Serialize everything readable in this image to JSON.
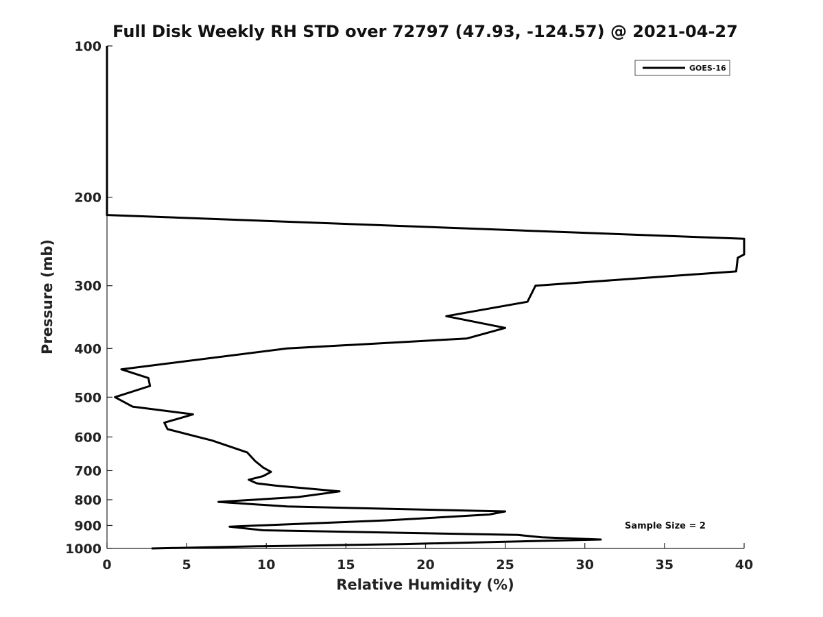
{
  "chart_data": {
    "type": "line",
    "title": "Full Disk Weekly RH STD over 72797 (47.93, -124.57) @ 2021-04-27",
    "xlabel": "Relative Humidity (%)",
    "ylabel": "Pressure (mb)",
    "xlim": [
      0,
      40
    ],
    "ylim": [
      1000,
      100
    ],
    "yscale": "log",
    "y_reversed": true,
    "grid": false,
    "legend_position": "top-right",
    "x_ticks": [
      "0",
      "5",
      "10",
      "15",
      "20",
      "25",
      "30",
      "35",
      "40"
    ],
    "y_ticks": [
      "100",
      "200",
      "300",
      "400",
      "500",
      "600",
      "700",
      "800",
      "900",
      "1000"
    ],
    "annotation": "Sample Size = 2",
    "series": [
      {
        "name": "GOES-16",
        "color": "#000000",
        "points": [
          [
            0,
            100
          ],
          [
            0,
            200
          ],
          [
            0,
            217
          ],
          [
            40,
            242
          ],
          [
            40,
            260
          ],
          [
            39.6,
            264
          ],
          [
            39.5,
            281
          ],
          [
            26.9,
            300
          ],
          [
            26.4,
            323
          ],
          [
            21.3,
            345
          ],
          [
            25.0,
            364
          ],
          [
            22.6,
            382
          ],
          [
            11.3,
            400
          ],
          [
            0.9,
            440
          ],
          [
            2.6,
            458
          ],
          [
            2.7,
            475
          ],
          [
            0.5,
            500
          ],
          [
            1.6,
            522
          ],
          [
            5.4,
            541
          ],
          [
            3.6,
            562
          ],
          [
            3.8,
            579
          ],
          [
            6.6,
            610
          ],
          [
            8.8,
            644
          ],
          [
            9.3,
            670
          ],
          [
            9.8,
            690
          ],
          [
            10.3,
            704
          ],
          [
            9.8,
            718
          ],
          [
            8.9,
            730
          ],
          [
            9.4,
            742
          ],
          [
            10.6,
            750
          ],
          [
            14.6,
            770
          ],
          [
            12.0,
            790
          ],
          [
            7.0,
            808
          ],
          [
            11.3,
            825
          ],
          [
            25.0,
            844
          ],
          [
            24.0,
            856
          ],
          [
            17.7,
            879
          ],
          [
            7.7,
            905
          ],
          [
            9.8,
            920
          ],
          [
            25.8,
            940
          ],
          [
            27.3,
            950
          ],
          [
            31.0,
            960
          ],
          [
            18.7,
            980
          ],
          [
            9.5,
            990
          ],
          [
            2.8,
            1000
          ]
        ]
      }
    ]
  }
}
